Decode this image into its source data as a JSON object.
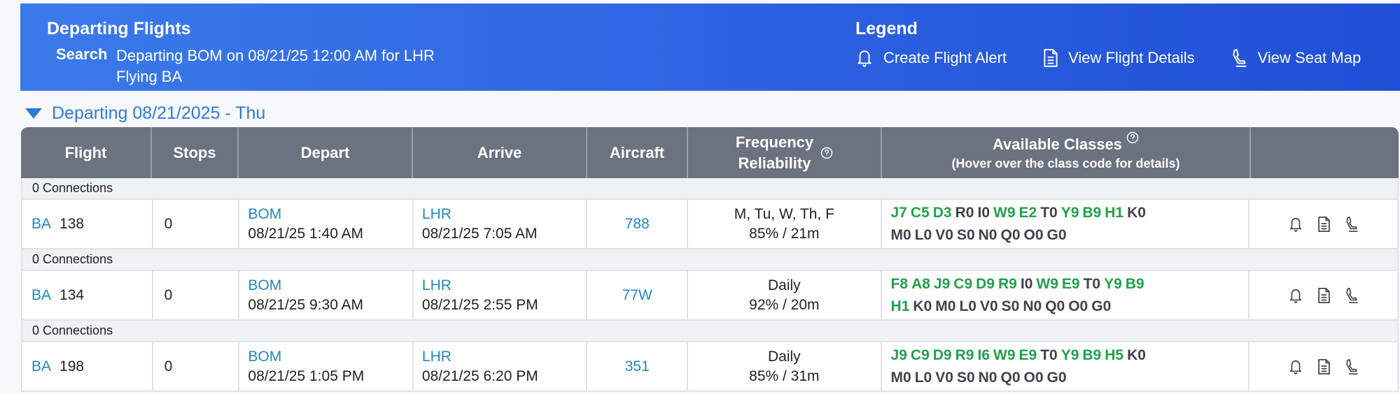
{
  "banner": {
    "title": "Departing Flights",
    "search_label": "Search",
    "search_line1": "Departing BOM on 08/21/25 12:00 AM for LHR",
    "search_line2": "Flying BA"
  },
  "legend": {
    "title": "Legend",
    "items": [
      {
        "icon": "bell-icon",
        "label": "Create Flight Alert"
      },
      {
        "icon": "document-icon",
        "label": "View Flight Details"
      },
      {
        "icon": "seat-icon",
        "label": "View Seat Map"
      }
    ]
  },
  "day_header": {
    "label": "Departing 08/21/2025 - Thu"
  },
  "table": {
    "columns": {
      "flight": "Flight",
      "stops": "Stops",
      "depart": "Depart",
      "arrive": "Arrive",
      "aircraft": "Aircraft",
      "freq_line1": "Frequency",
      "freq_line2": "Reliability",
      "classes_line1": "Available Classes",
      "classes_line2": "(Hover over the class code for details)"
    },
    "colors": {
      "available": "#22a04b",
      "unavailable": "#3f434a",
      "link": "#2288c0",
      "header_bg": "#6b7280"
    },
    "rows": [
      {
        "connections": "0 Connections",
        "airline": "BA",
        "number": "138",
        "stops": "0",
        "depart_airport": "BOM",
        "depart_time": "08/21/25 1:40 AM",
        "arrive_airport": "LHR",
        "arrive_time": "08/21/25 7:05 AM",
        "aircraft": "788",
        "frequency": "M, Tu, W, Th, F",
        "reliability": "85% / 21m",
        "classes_line1": [
          [
            "J7",
            1
          ],
          [
            "C5",
            1
          ],
          [
            "D3",
            1
          ],
          [
            "R0",
            0
          ],
          [
            "I0",
            0
          ],
          [
            "W9",
            1
          ],
          [
            "E2",
            1
          ],
          [
            "T0",
            0
          ],
          [
            "Y9",
            1
          ],
          [
            "B9",
            1
          ],
          [
            "H1",
            1
          ],
          [
            "K0",
            0
          ]
        ],
        "classes_line2": [
          [
            "M0",
            0
          ],
          [
            "L0",
            0
          ],
          [
            "V0",
            0
          ],
          [
            "S0",
            0
          ],
          [
            "N0",
            0
          ],
          [
            "Q0",
            0
          ],
          [
            "O0",
            0
          ],
          [
            "G0",
            0
          ]
        ]
      },
      {
        "connections": "0 Connections",
        "airline": "BA",
        "number": "134",
        "stops": "0",
        "depart_airport": "BOM",
        "depart_time": "08/21/25 9:30 AM",
        "arrive_airport": "LHR",
        "arrive_time": "08/21/25 2:55 PM",
        "aircraft": "77W",
        "frequency": "Daily",
        "reliability": "92% / 20m",
        "classes_line1": [
          [
            "F8",
            1
          ],
          [
            "A8",
            1
          ],
          [
            "J9",
            1
          ],
          [
            "C9",
            1
          ],
          [
            "D9",
            1
          ],
          [
            "R9",
            1
          ],
          [
            "I0",
            0
          ],
          [
            "W9",
            1
          ],
          [
            "E9",
            1
          ],
          [
            "T0",
            0
          ],
          [
            "Y9",
            1
          ],
          [
            "B9",
            1
          ]
        ],
        "classes_line2": [
          [
            "H1",
            1
          ],
          [
            "K0",
            0
          ],
          [
            "M0",
            0
          ],
          [
            "L0",
            0
          ],
          [
            "V0",
            0
          ],
          [
            "S0",
            0
          ],
          [
            "N0",
            0
          ],
          [
            "Q0",
            0
          ],
          [
            "O0",
            0
          ],
          [
            "G0",
            0
          ]
        ]
      },
      {
        "connections": "0 Connections",
        "airline": "BA",
        "number": "198",
        "stops": "0",
        "depart_airport": "BOM",
        "depart_time": "08/21/25 1:05 PM",
        "arrive_airport": "LHR",
        "arrive_time": "08/21/25 6:20 PM",
        "aircraft": "351",
        "frequency": "Daily",
        "reliability": "85% / 31m",
        "classes_line1": [
          [
            "J9",
            1
          ],
          [
            "C9",
            1
          ],
          [
            "D9",
            1
          ],
          [
            "R9",
            1
          ],
          [
            "I6",
            1
          ],
          [
            "W9",
            1
          ],
          [
            "E9",
            1
          ],
          [
            "T0",
            0
          ],
          [
            "Y9",
            1
          ],
          [
            "B9",
            1
          ],
          [
            "H5",
            1
          ],
          [
            "K0",
            0
          ]
        ],
        "classes_line2": [
          [
            "M0",
            0
          ],
          [
            "L0",
            0
          ],
          [
            "V0",
            0
          ],
          [
            "S0",
            0
          ],
          [
            "N0",
            0
          ],
          [
            "Q0",
            0
          ],
          [
            "O0",
            0
          ],
          [
            "G0",
            0
          ]
        ]
      }
    ]
  }
}
